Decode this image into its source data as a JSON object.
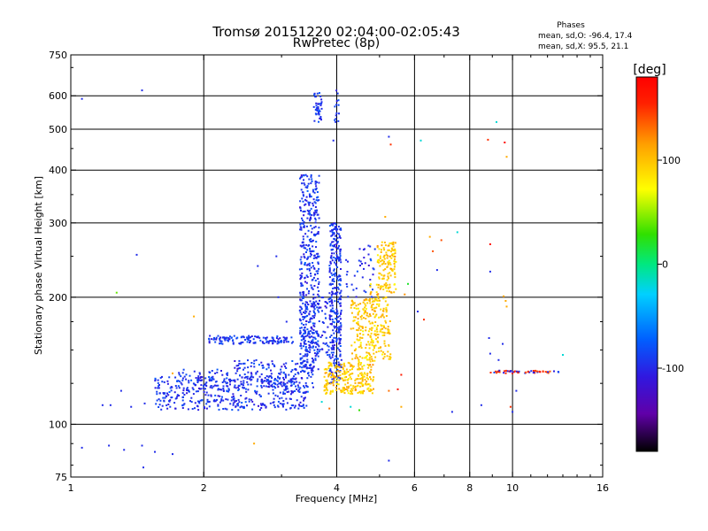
{
  "chart_data": {
    "type": "scatter",
    "title": "Tromsø 20151220 02:04:00-02:05:43",
    "subtitle": "RwPretec (8p)",
    "stats": {
      "heading": "Phases",
      "line_o": "mean, sd,O: -96.4, 17.4",
      "line_x": "mean, sd,X:  95.5, 21.1"
    },
    "xlabel": "Frequency [MHz]",
    "ylabel": "Stationary phase Virtual Height [km]",
    "x_scale": "log",
    "y_scale": "log",
    "xlim": [
      1,
      16
    ],
    "ylim": [
      75,
      750
    ],
    "x_ticks": [
      1,
      2,
      4,
      6,
      8,
      10,
      16
    ],
    "x_tick_labels": [
      "1",
      "2",
      "4",
      "6",
      "8",
      "10",
      "16"
    ],
    "x_grid": [
      2,
      4,
      6,
      8,
      10
    ],
    "y_ticks": [
      75,
      100,
      200,
      300,
      400,
      500,
      600,
      750
    ],
    "y_tick_labels": [
      "75",
      "100",
      "200",
      "300",
      "400",
      "500",
      "600",
      "750"
    ],
    "y_grid": [
      100,
      200,
      300,
      400,
      500,
      600
    ],
    "grid": true,
    "colorbar": {
      "label": "[deg]",
      "range": [
        -180,
        180
      ],
      "ticks": [
        100,
        0,
        -100
      ],
      "tick_labels": [
        "100",
        "0",
        "-100"
      ],
      "colormap": "rainbow: black-purple-blue-cyan-green-yellow-orange-red"
    },
    "series": [
      {
        "role": "O-mode trace (blue/purple, phase ~ -100 deg)",
        "phase_mean": -96.4,
        "phase_sd": 17.4,
        "segments": [
          {
            "x_range": [
              1.55,
              3.45
            ],
            "y_range": [
              108,
              130
            ],
            "count": 420
          },
          {
            "x_range": [
              2.35,
              3.55
            ],
            "y_range": [
              122,
              142
            ],
            "count": 160
          },
          {
            "x_range": [
              2.05,
              3.2
            ],
            "y_range": [
              155,
              162
            ],
            "count": 130
          },
          {
            "x_range": [
              1.75,
              2.3
            ],
            "y_range": [
              120,
              135
            ],
            "count": 60
          },
          {
            "x_range": [
              3.3,
              3.65
            ],
            "y_range": [
              135,
              390
            ],
            "count": 460
          },
          {
            "x_range": [
              3.85,
              4.1
            ],
            "y_range": [
              125,
              300
            ],
            "count": 320
          },
          {
            "x_range": [
              3.55,
              3.7
            ],
            "y_range": [
              520,
              610
            ],
            "count": 40
          },
          {
            "x_range": [
              3.95,
              4.05
            ],
            "y_range": [
              520,
              620
            ],
            "count": 14
          },
          {
            "x_range": [
              3.3,
              3.9
            ],
            "y_range": [
              145,
              200
            ],
            "count": 90
          },
          {
            "x_range": [
              4.2,
              4.9
            ],
            "y_range": [
              195,
              265
            ],
            "count": 40
          }
        ]
      },
      {
        "role": "X-mode trace (yellow/orange, phase ~ +95 deg)",
        "phase_mean": 95.5,
        "phase_sd": 21.1,
        "segments": [
          {
            "x_range": [
              3.75,
              4.85
            ],
            "y_range": [
              118,
              140
            ],
            "count": 240
          },
          {
            "x_range": [
              4.3,
              5.3
            ],
            "y_range": [
              140,
              200
            ],
            "count": 260
          },
          {
            "x_range": [
              4.95,
              5.45
            ],
            "y_range": [
              205,
              270
            ],
            "count": 130
          },
          {
            "x_range": [
              4.7,
              5.1
            ],
            "y_range": [
              195,
              215
            ],
            "count": 25
          }
        ]
      },
      {
        "role": "High-frequency trace near 10-13 MHz",
        "segments": [
          {
            "x_range": [
              8.9,
              12.8
            ],
            "y_range": [
              132,
              134
            ],
            "count": 60
          }
        ]
      }
    ],
    "isolated_points": [
      {
        "x": 1.06,
        "y": 590,
        "phase": -100
      },
      {
        "x": 1.45,
        "y": 618,
        "phase": -100
      },
      {
        "x": 1.41,
        "y": 252,
        "phase": -100
      },
      {
        "x": 1.3,
        "y": 120,
        "phase": -100
      },
      {
        "x": 1.47,
        "y": 112,
        "phase": -100
      },
      {
        "x": 1.18,
        "y": 111,
        "phase": -100
      },
      {
        "x": 1.23,
        "y": 111,
        "phase": -100
      },
      {
        "x": 1.37,
        "y": 110,
        "phase": -100
      },
      {
        "x": 1.06,
        "y": 88,
        "phase": -100
      },
      {
        "x": 1.22,
        "y": 89,
        "phase": -100
      },
      {
        "x": 1.32,
        "y": 87,
        "phase": -100
      },
      {
        "x": 1.45,
        "y": 89,
        "phase": -100
      },
      {
        "x": 1.55,
        "y": 86,
        "phase": -100
      },
      {
        "x": 1.7,
        "y": 85,
        "phase": -100
      },
      {
        "x": 1.46,
        "y": 79,
        "phase": -100
      },
      {
        "x": 1.27,
        "y": 205,
        "phase": 40
      },
      {
        "x": 1.7,
        "y": 132,
        "phase": 110
      },
      {
        "x": 2.6,
        "y": 90,
        "phase": 110
      },
      {
        "x": 1.9,
        "y": 180,
        "phase": 110
      },
      {
        "x": 2.92,
        "y": 250,
        "phase": -100
      },
      {
        "x": 2.65,
        "y": 237,
        "phase": -100
      },
      {
        "x": 2.95,
        "y": 200,
        "phase": -100
      },
      {
        "x": 3.08,
        "y": 175,
        "phase": -100
      },
      {
        "x": 3.93,
        "y": 470,
        "phase": -100
      },
      {
        "x": 4.2,
        "y": 245,
        "phase": -100
      },
      {
        "x": 5.25,
        "y": 480,
        "phase": -100
      },
      {
        "x": 5.3,
        "y": 460,
        "phase": 150
      },
      {
        "x": 6.2,
        "y": 470,
        "phase": -20
      },
      {
        "x": 5.15,
        "y": 310,
        "phase": 110
      },
      {
        "x": 5.4,
        "y": 240,
        "phase": 110
      },
      {
        "x": 5.8,
        "y": 215,
        "phase": 20
      },
      {
        "x": 5.7,
        "y": 203,
        "phase": 120
      },
      {
        "x": 5.25,
        "y": 120,
        "phase": 130
      },
      {
        "x": 5.5,
        "y": 121,
        "phase": 170
      },
      {
        "x": 5.6,
        "y": 110,
        "phase": 110
      },
      {
        "x": 4.5,
        "y": 108,
        "phase": 30
      },
      {
        "x": 5.6,
        "y": 131,
        "phase": 160
      },
      {
        "x": 6.5,
        "y": 278,
        "phase": 110
      },
      {
        "x": 6.6,
        "y": 257,
        "phase": 140
      },
      {
        "x": 6.75,
        "y": 232,
        "phase": -100
      },
      {
        "x": 6.9,
        "y": 273,
        "phase": 140
      },
      {
        "x": 7.5,
        "y": 285,
        "phase": -20
      },
      {
        "x": 6.1,
        "y": 185,
        "phase": -100
      },
      {
        "x": 6.3,
        "y": 177,
        "phase": 150
      },
      {
        "x": 7.3,
        "y": 107,
        "phase": -100
      },
      {
        "x": 8.5,
        "y": 111,
        "phase": -100
      },
      {
        "x": 8.9,
        "y": 267,
        "phase": 170
      },
      {
        "x": 8.9,
        "y": 230,
        "phase": -100
      },
      {
        "x": 8.85,
        "y": 160,
        "phase": -100
      },
      {
        "x": 8.9,
        "y": 147,
        "phase": -100
      },
      {
        "x": 8.8,
        "y": 472,
        "phase": 150
      },
      {
        "x": 9.6,
        "y": 465,
        "phase": 175
      },
      {
        "x": 9.7,
        "y": 430,
        "phase": 110
      },
      {
        "x": 9.2,
        "y": 520,
        "phase": -20
      },
      {
        "x": 9.65,
        "y": 196,
        "phase": 110
      },
      {
        "x": 9.7,
        "y": 190,
        "phase": 110
      },
      {
        "x": 9.55,
        "y": 201,
        "phase": 110
      },
      {
        "x": 9.5,
        "y": 155,
        "phase": -100
      },
      {
        "x": 9.3,
        "y": 142,
        "phase": -100
      },
      {
        "x": 9.9,
        "y": 110,
        "phase": 150
      },
      {
        "x": 10.0,
        "y": 107,
        "phase": -100
      },
      {
        "x": 10.2,
        "y": 120,
        "phase": -100
      },
      {
        "x": 13.0,
        "y": 146,
        "phase": -20
      },
      {
        "x": 5.25,
        "y": 82,
        "phase": -100
      },
      {
        "x": 4.3,
        "y": 110,
        "phase": -20
      },
      {
        "x": 3.85,
        "y": 109,
        "phase": 130
      },
      {
        "x": 3.7,
        "y": 113,
        "phase": -20
      }
    ]
  }
}
